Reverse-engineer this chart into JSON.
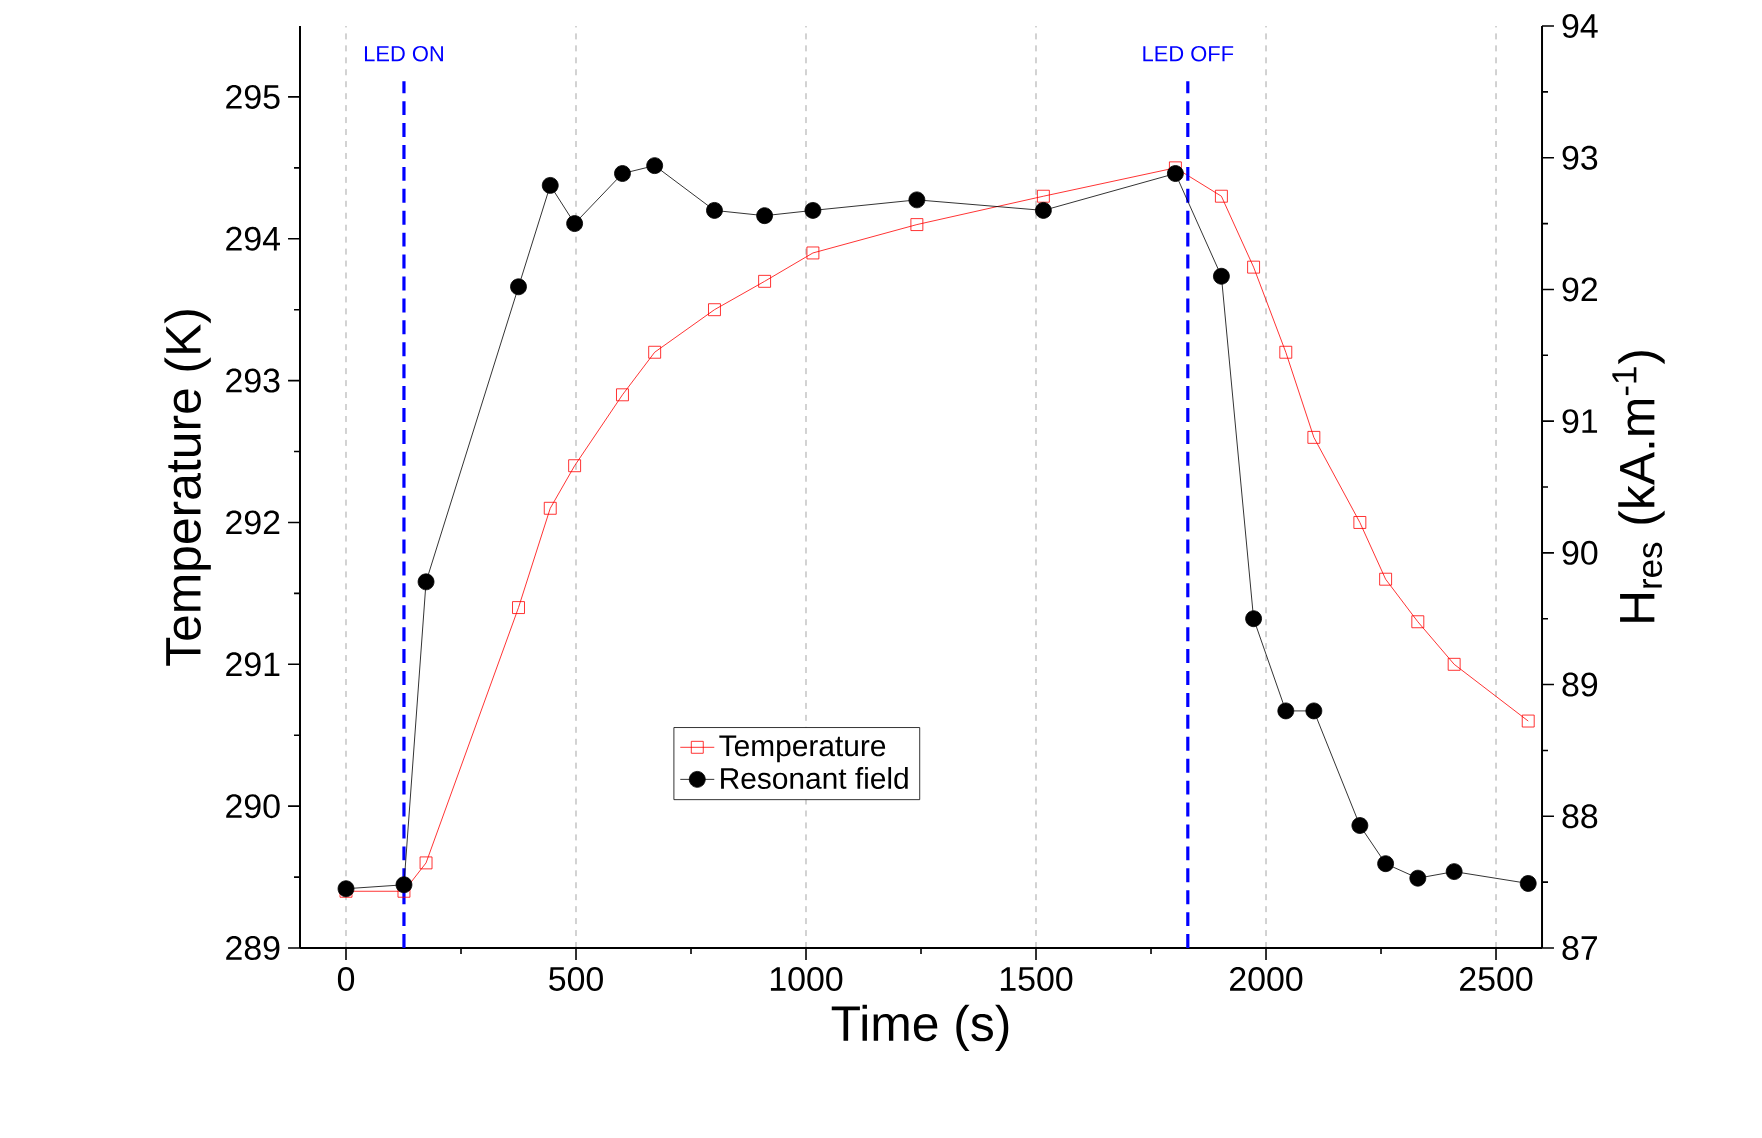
{
  "chart_data": {
    "type": "line",
    "xlabel": "Time (s)",
    "ylabel": "Temperature (K)",
    "y2label": "H$_{res}$ (kA.m$^{-1}$)",
    "x": [
      0,
      126,
      174,
      375,
      444,
      497,
      601,
      671,
      801,
      910,
      1015,
      1241,
      1516,
      1803,
      1903,
      1973,
      2043,
      2104,
      2204,
      2260,
      2330,
      2409,
      2570
    ],
    "series": [
      {
        "name": "Temperature",
        "color": "#ff0000",
        "marker": "square",
        "values": [
          289.4,
          289.4,
          289.6,
          291.4,
          292.1,
          292.4,
          292.9,
          293.2,
          293.5,
          293.7,
          293.9,
          294.1,
          294.3,
          294.5,
          294.3,
          293.8,
          293.2,
          292.6,
          292.0,
          291.6,
          291.3,
          291.0,
          290.6
        ]
      },
      {
        "name": "Resonant field",
        "color": "#000000",
        "marker": "circle",
        "axis": "y2",
        "values": [
          87.45,
          87.48,
          89.78,
          92.02,
          92.79,
          92.5,
          92.88,
          92.94,
          92.6,
          92.56,
          92.6,
          92.68,
          92.6,
          92.88,
          92.1,
          89.5,
          88.8,
          88.8,
          87.93,
          87.64,
          87.53,
          87.58,
          87.49
        ]
      }
    ],
    "xlim": [
      -100,
      2600
    ],
    "xticks": [
      0,
      500,
      1000,
      1500,
      2000,
      2500
    ],
    "ylim": [
      289,
      295.5
    ],
    "yticks": [
      289,
      290,
      291,
      292,
      293,
      294,
      295
    ],
    "y2lim": [
      87,
      94
    ],
    "y2ticks": [
      87,
      88,
      89,
      90,
      91,
      92,
      93,
      94
    ],
    "ref_lines": [
      {
        "axis": "x",
        "value": 126,
        "label": "LED ON",
        "color": "#0000ff",
        "line_style": "dashed"
      },
      {
        "axis": "x",
        "value": 1830,
        "label": "LED OFF",
        "color": "#0000ff",
        "line_style": "dashed"
      }
    ],
    "grid": "x",
    "legend": "bottom"
  }
}
